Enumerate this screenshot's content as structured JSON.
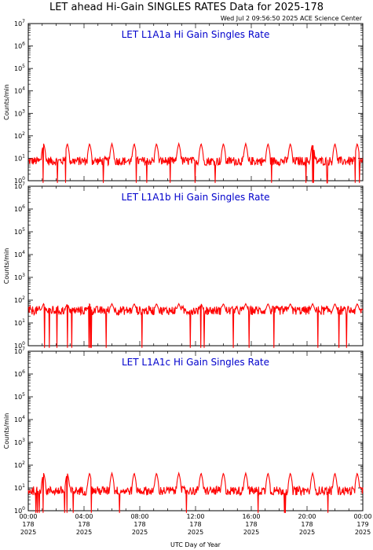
{
  "header": {
    "title": "LET ahead Hi-Gain SINGLES RATES Data for 2025-178",
    "timestamp": "Wed Jul  2 09:56:50 2025 ACE Science Center"
  },
  "colors": {
    "series": "#ff0000",
    "panel_title": "#0000cc",
    "axes": "#000000"
  },
  "chart_data": [
    {
      "type": "line",
      "title": "LET L1A1a Hi Gain Singles Rate",
      "ylabel": "Counts/min",
      "yscale": "log",
      "ylim": [
        1,
        10000000
      ],
      "xlim": [
        0,
        24
      ],
      "series": [
        {
          "baseline": 7.5,
          "spike_peak": 45,
          "spike_hours": [
            1.1,
            2.8,
            4.4,
            6.0,
            7.6,
            9.2,
            10.8,
            12.4,
            14.0,
            15.6,
            17.2,
            18.8,
            20.4,
            22.0,
            23.6
          ]
        }
      ]
    },
    {
      "type": "line",
      "title": "LET L1A1b Hi Gain Singles Rate",
      "ylabel": "Counts/min",
      "yscale": "log",
      "ylim": [
        1,
        10000000
      ],
      "xlim": [
        0,
        24
      ],
      "series": [
        {
          "baseline": 35,
          "spike_peak": 70,
          "spike_hours": [
            1.1,
            2.8,
            4.4,
            6.0,
            7.6,
            9.2,
            10.8,
            12.4,
            14.0,
            15.6,
            17.2,
            18.8,
            20.4,
            22.0,
            23.6
          ]
        }
      ]
    },
    {
      "type": "line",
      "title": "LET L1A1c Hi Gain Singles Rate",
      "ylabel": "Counts/min",
      "yscale": "log",
      "ylim": [
        1,
        10000000
      ],
      "xlim": [
        0,
        24
      ],
      "series": [
        {
          "baseline": 7.5,
          "spike_peak": 45,
          "spike_hours": [
            1.1,
            2.8,
            4.4,
            6.0,
            7.6,
            9.2,
            10.8,
            12.4,
            14.0,
            15.6,
            17.2,
            18.8,
            20.4,
            22.0,
            23.6
          ]
        }
      ]
    }
  ],
  "y_ticks": [
    {
      "mant": "10",
      "exp": "0"
    },
    {
      "mant": "10",
      "exp": "1"
    },
    {
      "mant": "10",
      "exp": "2"
    },
    {
      "mant": "10",
      "exp": "3"
    },
    {
      "mant": "10",
      "exp": "4"
    },
    {
      "mant": "10",
      "exp": "5"
    },
    {
      "mant": "10",
      "exp": "6"
    },
    {
      "mant": "10",
      "exp": "7"
    }
  ],
  "x_ticks": [
    {
      "time": "00:00",
      "doy": "178",
      "year": "2025"
    },
    {
      "time": "04:00",
      "doy": "178",
      "year": "2025"
    },
    {
      "time": "08:00",
      "doy": "178",
      "year": "2025"
    },
    {
      "time": "12:00",
      "doy": "178",
      "year": "2025"
    },
    {
      "time": "16:00",
      "doy": "178",
      "year": "2025"
    },
    {
      "time": "20:00",
      "doy": "178",
      "year": "2025"
    },
    {
      "time": "00:00",
      "doy": "179",
      "year": "2025"
    }
  ],
  "xlabel": "UTC Day of Year"
}
